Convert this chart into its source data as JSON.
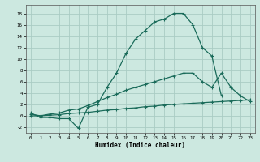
{
  "xlabel": "Humidex (Indice chaleur)",
  "background_color": "#cce8e0",
  "grid_color": "#aaccc4",
  "line_color": "#1a6b5a",
  "line1_x": [
    0,
    1,
    2,
    3,
    4,
    5,
    6,
    7,
    8,
    9,
    10,
    11,
    12,
    13,
    14,
    15,
    16,
    17,
    18,
    19,
    20
  ],
  "line1_y": [
    0.5,
    -0.3,
    -0.3,
    -0.5,
    -0.5,
    -2.2,
    1.5,
    2.0,
    5.0,
    7.5,
    11.0,
    13.5,
    15.0,
    16.5,
    17.0,
    18.0,
    18.0,
    16.0,
    12.0,
    10.5,
    3.5
  ],
  "line2_x": [
    0,
    1,
    2,
    3,
    4,
    5,
    6,
    7,
    8,
    9,
    10,
    11,
    12,
    13,
    14,
    15,
    16,
    17,
    18,
    19,
    20,
    21,
    22,
    23
  ],
  "line2_y": [
    0.3,
    0.0,
    0.3,
    0.5,
    1.0,
    1.2,
    1.8,
    2.5,
    3.2,
    3.8,
    4.5,
    5.0,
    5.5,
    6.0,
    6.5,
    7.0,
    7.5,
    7.5,
    6.0,
    5.0,
    7.5,
    5.0,
    3.5,
    2.5
  ],
  "line3_x": [
    0,
    1,
    2,
    3,
    4,
    5,
    6,
    7,
    8,
    9,
    10,
    11,
    12,
    13,
    14,
    15,
    16,
    17,
    18,
    19,
    20,
    21,
    22,
    23
  ],
  "line3_y": [
    0.0,
    0.0,
    0.1,
    0.2,
    0.4,
    0.5,
    0.6,
    0.8,
    1.0,
    1.1,
    1.3,
    1.4,
    1.6,
    1.7,
    1.9,
    2.0,
    2.1,
    2.2,
    2.3,
    2.4,
    2.5,
    2.6,
    2.7,
    2.8
  ],
  "ylim": [
    -3,
    19.5
  ],
  "xlim": [
    -0.5,
    23.5
  ],
  "yticks": [
    -2,
    0,
    2,
    4,
    6,
    8,
    10,
    12,
    14,
    16,
    18
  ],
  "xticks": [
    0,
    1,
    2,
    3,
    4,
    5,
    6,
    7,
    8,
    9,
    10,
    11,
    12,
    13,
    14,
    15,
    16,
    17,
    18,
    19,
    20,
    21,
    22,
    23
  ]
}
